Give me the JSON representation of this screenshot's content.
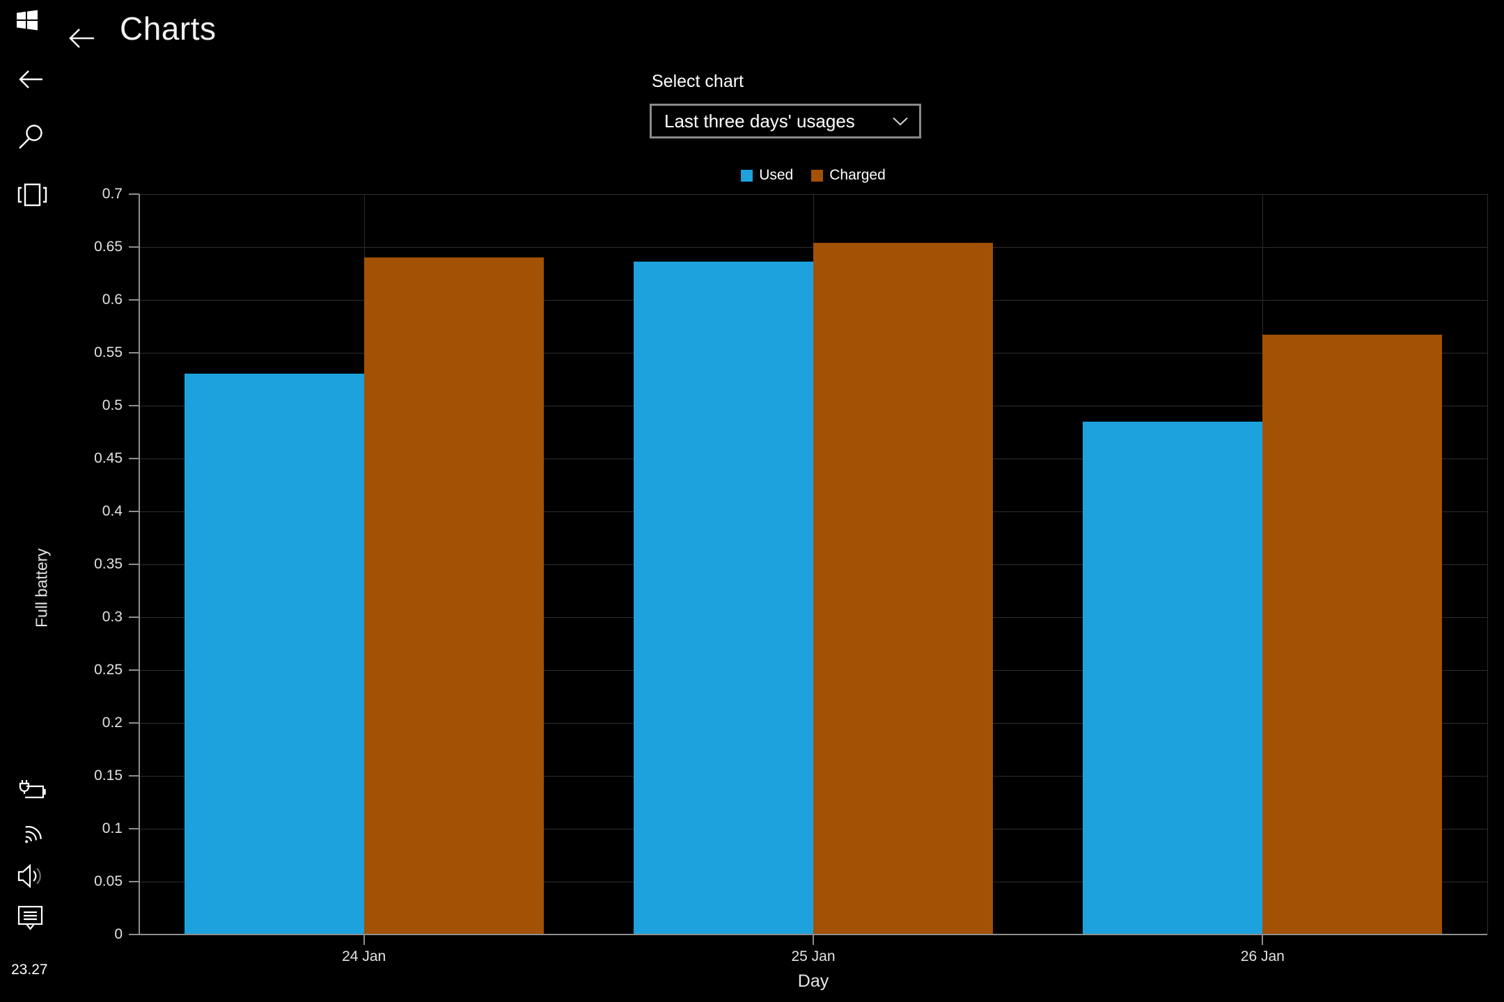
{
  "header": {
    "title": "Charts"
  },
  "controls": {
    "select_label": "Select chart",
    "dropdown_value": "Last three days' usages"
  },
  "legend": [
    {
      "label": "Used",
      "color": "#1EA2DE"
    },
    {
      "label": "Charged",
      "color": "#A35104"
    }
  ],
  "sidebar": {
    "time": "23.27",
    "icons": [
      "windows-start-icon",
      "back-icon",
      "search-icon",
      "tablet-mode-icon",
      "battery-charging-icon",
      "wifi-icon",
      "volume-icon",
      "feedback-icon"
    ]
  },
  "chart_data": {
    "type": "bar",
    "title": "",
    "categories": [
      "24 Jan",
      "25 Jan",
      "26 Jan"
    ],
    "series": [
      {
        "name": "Used",
        "color": "#1EA2DE",
        "values": [
          0.53,
          0.636,
          0.485
        ]
      },
      {
        "name": "Charged",
        "color": "#A35104",
        "values": [
          0.64,
          0.654,
          0.567
        ]
      }
    ],
    "xlabel": "Day",
    "ylabel": "Full battery",
    "ylim": [
      0,
      0.7
    ],
    "ytick_step": 0.05,
    "grid": true,
    "legend_position": "top",
    "background": "#000000"
  }
}
